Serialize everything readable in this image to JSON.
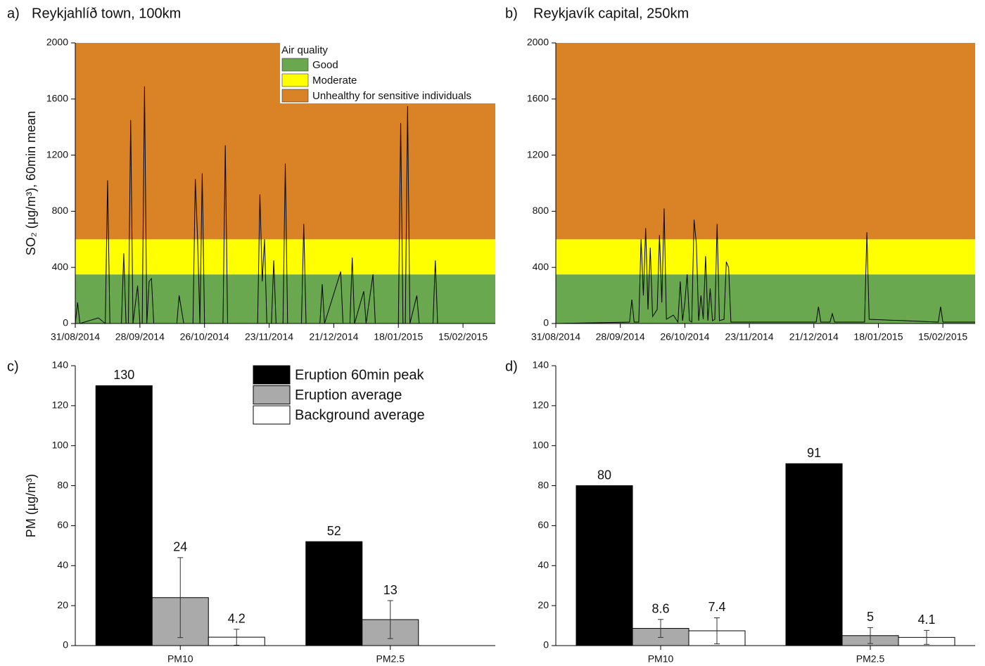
{
  "chart_data": [
    {
      "type": "line",
      "panel_label": "a)",
      "title": "Reykjahlíð town, 100km",
      "ylabel": "SO₂ (µg/m³), 60min mean",
      "legend": true,
      "legend_title": "Air quality",
      "bands": [
        {
          "name": "Good",
          "color": "#6aa84f",
          "range": [
            0,
            350
          ]
        },
        {
          "name": "Moderate",
          "color": "#ffff00",
          "range": [
            350,
            600
          ]
        },
        {
          "name": "Unhealthy for sensitive individuals",
          "color": "#d98226",
          "range": [
            600,
            2000
          ]
        }
      ],
      "color": "#000000",
      "xlim": [
        "2014-08-31",
        "2015-03-01"
      ],
      "xticks": [
        {
          "value": "2014-08-31",
          "label": "31/08/2014"
        },
        {
          "value": "2014-09-28",
          "label": "28/09/2014"
        },
        {
          "value": "2014-10-26",
          "label": "26/10/2014"
        },
        {
          "value": "2014-11-23",
          "label": "23/11/2014"
        },
        {
          "value": "2014-12-21",
          "label": "21/12/2014"
        },
        {
          "value": "2015-01-18",
          "label": "18/01/2015"
        },
        {
          "value": "2015-02-15",
          "label": "15/02/2015"
        }
      ],
      "ylim": [
        0,
        2000
      ],
      "yticks": [
        0,
        400,
        800,
        1200,
        1600,
        2000
      ],
      "x": [
        "2014-08-31",
        "2014-09-01",
        "2014-09-02",
        "2014-09-10",
        "2014-09-13",
        "2014-09-14",
        "2014-09-15",
        "2014-09-20",
        "2014-09-21",
        "2014-09-22",
        "2014-09-23",
        "2014-09-24",
        "2014-09-25",
        "2014-09-27",
        "2014-09-28",
        "2014-09-29",
        "2014-09-30",
        "2014-10-01",
        "2014-10-02",
        "2014-10-03",
        "2014-10-04",
        "2014-10-14",
        "2014-10-15",
        "2014-10-17",
        "2014-10-21",
        "2014-10-22",
        "2014-10-23",
        "2014-10-24",
        "2014-10-25",
        "2014-10-26",
        "2014-11-03",
        "2014-11-04",
        "2014-11-05",
        "2014-11-18",
        "2014-11-19",
        "2014-11-20",
        "2014-11-21",
        "2014-11-22",
        "2014-11-24",
        "2014-11-25",
        "2014-11-26",
        "2014-11-29",
        "2014-11-30",
        "2014-12-01",
        "2014-12-07",
        "2014-12-08",
        "2014-12-09",
        "2014-12-15",
        "2014-12-16",
        "2014-12-17",
        "2014-12-24",
        "2014-12-25",
        "2014-12-28",
        "2014-12-29",
        "2014-12-30",
        "2015-01-03",
        "2015-01-04",
        "2015-01-07",
        "2015-01-08",
        "2015-01-18",
        "2015-01-19",
        "2015-01-20",
        "2015-01-21",
        "2015-01-22",
        "2015-01-23",
        "2015-01-26",
        "2015-01-27",
        "2015-02-02",
        "2015-02-03",
        "2015-02-04",
        "2015-03-01"
      ],
      "values": [
        0,
        150,
        0,
        40,
        0,
        1020,
        0,
        0,
        500,
        0,
        0,
        1450,
        0,
        270,
        0,
        0,
        1690,
        0,
        300,
        320,
        0,
        0,
        200,
        0,
        0,
        1030,
        600,
        0,
        1070,
        0,
        0,
        1270,
        0,
        0,
        920,
        300,
        600,
        0,
        0,
        450,
        0,
        0,
        1140,
        0,
        0,
        710,
        0,
        0,
        280,
        0,
        370,
        0,
        0,
        470,
        0,
        230,
        0,
        350,
        0,
        0,
        1430,
        0,
        0,
        1550,
        0,
        200,
        0,
        0,
        450,
        0,
        0
      ]
    },
    {
      "type": "line",
      "panel_label": "b)",
      "title": "Reykjavík capital, 250km",
      "legend": false,
      "bands": [
        {
          "color": "#6aa84f",
          "range": [
            0,
            350
          ]
        },
        {
          "color": "#ffff00",
          "range": [
            350,
            600
          ]
        },
        {
          "color": "#d98226",
          "range": [
            600,
            2000
          ]
        }
      ],
      "color": "#000000",
      "xlim": [
        "2014-08-31",
        "2015-03-01"
      ],
      "xticks": [
        {
          "value": "2014-08-31",
          "label": "31/08/2014"
        },
        {
          "value": "2014-09-28",
          "label": "28/09/2014"
        },
        {
          "value": "2014-10-26",
          "label": "26/10/2014"
        },
        {
          "value": "2014-11-23",
          "label": "23/11/2014"
        },
        {
          "value": "2014-12-21",
          "label": "21/12/2014"
        },
        {
          "value": "2015-01-18",
          "label": "18/01/2015"
        },
        {
          "value": "2015-02-15",
          "label": "15/02/2015"
        }
      ],
      "ylim": [
        0,
        2000
      ],
      "yticks": [
        0,
        400,
        800,
        1200,
        1600,
        2000
      ],
      "x": [
        "2014-08-31",
        "2014-10-02",
        "2014-10-03",
        "2014-10-04",
        "2014-10-06",
        "2014-10-07",
        "2014-10-08",
        "2014-10-09",
        "2014-10-10",
        "2014-10-11",
        "2014-10-12",
        "2014-10-14",
        "2014-10-15",
        "2014-10-16",
        "2014-10-17",
        "2014-10-18",
        "2014-10-21",
        "2014-10-23",
        "2014-10-24",
        "2014-10-25",
        "2014-10-26",
        "2014-10-27",
        "2014-10-28",
        "2014-10-29",
        "2014-10-30",
        "2014-10-31",
        "2014-11-01",
        "2014-11-02",
        "2014-11-03",
        "2014-11-04",
        "2014-11-05",
        "2014-11-06",
        "2014-11-07",
        "2014-11-08",
        "2014-11-09",
        "2014-11-10",
        "2014-11-12",
        "2014-11-13",
        "2014-11-14",
        "2014-11-15",
        "2014-12-22",
        "2014-12-23",
        "2014-12-24",
        "2014-12-28",
        "2014-12-29",
        "2014-12-30",
        "2015-01-12",
        "2015-01-13",
        "2015-01-14",
        "2015-02-13",
        "2015-02-14",
        "2015-02-15",
        "2015-03-01"
      ],
      "values": [
        0,
        10,
        170,
        10,
        10,
        600,
        200,
        680,
        100,
        540,
        50,
        100,
        630,
        150,
        820,
        30,
        60,
        10,
        300,
        20,
        150,
        350,
        20,
        10,
        740,
        570,
        20,
        200,
        30,
        480,
        20,
        250,
        20,
        30,
        710,
        20,
        30,
        440,
        400,
        10,
        10,
        120,
        10,
        10,
        70,
        10,
        10,
        650,
        30,
        10,
        120,
        10,
        10
      ]
    },
    {
      "type": "bar",
      "panel_label": "c)",
      "ylabel": "PM (µg/m³)",
      "legend": true,
      "categories": [
        "PM10",
        "PM2.5"
      ],
      "ylim": [
        0,
        140
      ],
      "yticks": [
        0,
        20,
        40,
        60,
        80,
        100,
        120,
        140
      ],
      "series": [
        {
          "name": "Eruption 60min peak",
          "color": "#000000",
          "values": [
            130,
            52
          ]
        },
        {
          "name": "Eruption average",
          "color": "#aaaaaa",
          "values": [
            24,
            13
          ],
          "errors": [
            20,
            9.5
          ]
        },
        {
          "name": "Background average",
          "color": "#ffffff",
          "values": [
            4.2,
            null
          ],
          "errors": [
            4,
            null
          ]
        }
      ]
    },
    {
      "type": "bar",
      "panel_label": "d)",
      "legend": false,
      "categories": [
        "PM10",
        "PM2.5"
      ],
      "ylim": [
        0,
        140
      ],
      "yticks": [
        0,
        20,
        40,
        60,
        80,
        100,
        120,
        140
      ],
      "series": [
        {
          "color": "#000000",
          "values": [
            80,
            91
          ]
        },
        {
          "color": "#aaaaaa",
          "values": [
            8.6,
            5
          ],
          "errors": [
            4.5,
            4
          ]
        },
        {
          "color": "#ffffff",
          "values": [
            7.4,
            4.1
          ],
          "errors": [
            6.5,
            3.5
          ]
        }
      ]
    }
  ]
}
